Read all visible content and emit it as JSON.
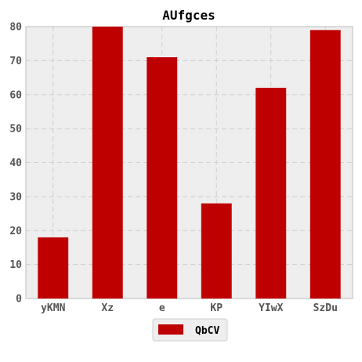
{
  "chart_data": {
    "type": "bar",
    "title": "AUfgces",
    "xlabel": "",
    "ylabel": "",
    "categories": [
      "yKMN",
      "Xz",
      "e",
      "KP",
      "YIwX",
      "SzDu"
    ],
    "series": [
      {
        "name": "QbCV",
        "values": [
          18,
          80,
          71,
          28,
          62,
          79
        ]
      }
    ],
    "ylim": [
      0,
      80
    ],
    "yticks": [
      0,
      10,
      20,
      30,
      40,
      50,
      60,
      70,
      80
    ],
    "grid": true,
    "legend_position": "bottom-center",
    "colors": {
      "bar": "#bf0000",
      "plot_background": "#eeeeee",
      "grid": "#cfcfcf",
      "axis": "#bdbdbd"
    }
  }
}
